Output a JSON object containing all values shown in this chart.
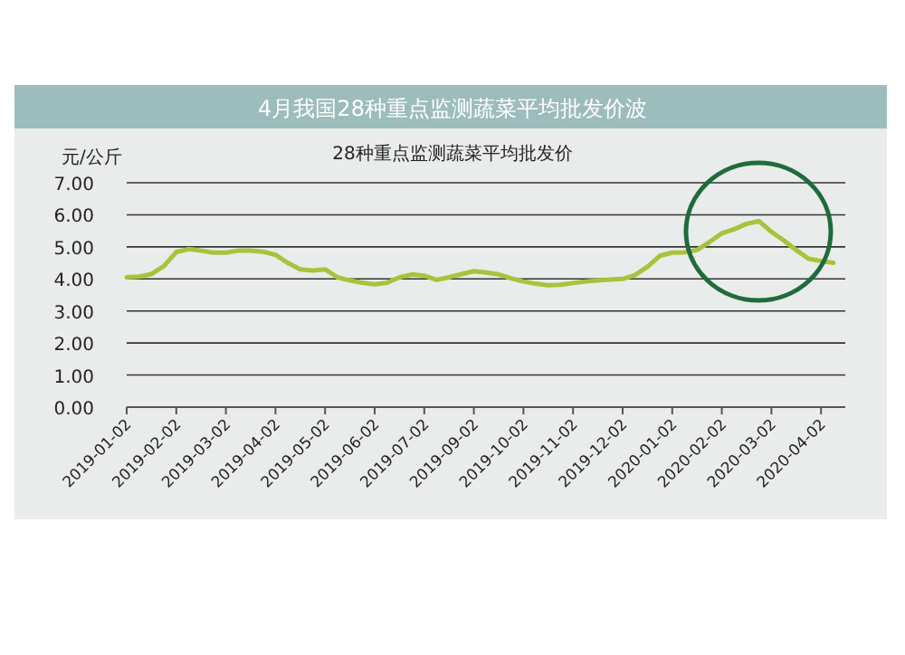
{
  "chart_data": {
    "type": "line",
    "title": "4月我国28种重点监测蔬菜平均批发价波",
    "subtitle": "28种重点监测蔬菜平均批发价",
    "ylabel": "元/公斤",
    "categories": [
      "2019-01-02",
      null,
      null,
      null,
      "2019-02-02",
      null,
      null,
      null,
      "2019-03-02",
      null,
      null,
      null,
      "2019-04-02",
      null,
      null,
      null,
      "2019-05-02",
      null,
      null,
      null,
      "2019-06-02",
      null,
      null,
      null,
      "2019-07-02",
      null,
      null,
      null,
      "2019-09-02",
      null,
      null,
      null,
      "2019-10-02",
      null,
      null,
      null,
      "2019-11-02",
      null,
      null,
      null,
      "2019-12-02",
      null,
      null,
      null,
      "2020-01-02",
      null,
      null,
      null,
      "2020-02-02",
      null,
      null,
      null,
      "2020-03-02",
      null,
      null,
      null,
      "2020-04-02",
      null
    ],
    "series": [
      {
        "color": "#a9c23c",
        "values": [
          4.05,
          4.07,
          4.15,
          4.4,
          4.84,
          4.93,
          4.88,
          4.82,
          4.82,
          4.88,
          4.88,
          4.85,
          4.75,
          4.5,
          4.3,
          4.26,
          4.3,
          4.05,
          3.95,
          3.88,
          3.83,
          3.88,
          4.05,
          4.14,
          4.1,
          3.97,
          4.05,
          4.15,
          4.24,
          4.2,
          4.14,
          4.02,
          3.92,
          3.85,
          3.8,
          3.82,
          3.87,
          3.92,
          3.95,
          3.98,
          4.0,
          4.12,
          4.38,
          4.72,
          4.82,
          4.83,
          4.9,
          5.15,
          5.42,
          5.55,
          5.72,
          5.8,
          5.47,
          5.2,
          4.9,
          4.63,
          4.56,
          4.5
        ]
      }
    ],
    "ylim": [
      0,
      7
    ],
    "yticks": [
      {
        "value": 0,
        "label": "0.00"
      },
      {
        "value": 1,
        "label": "1.00"
      },
      {
        "value": 2,
        "label": "2.00"
      },
      {
        "value": 3,
        "label": "3.00"
      },
      {
        "value": 4,
        "label": "4.00"
      },
      {
        "value": 5,
        "label": "5.00"
      },
      {
        "value": 6,
        "label": "6.00"
      },
      {
        "value": 7,
        "label": "7.00"
      }
    ],
    "grid": "y",
    "marker": "none",
    "line_style": "solid"
  }
}
